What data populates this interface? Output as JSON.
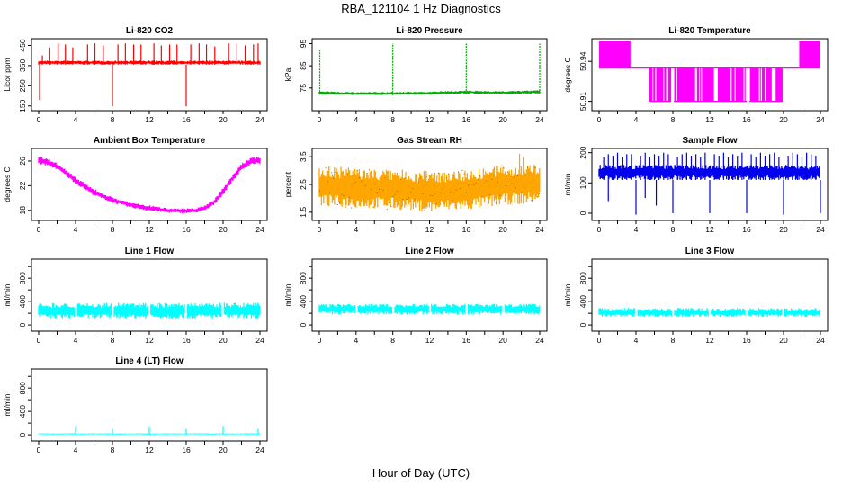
{
  "title": "RBA_121104  1 Hz Diagnostics",
  "xlabel": "Hour of Day (UTC)",
  "chart_data": [
    {
      "type": "line",
      "title": "Li-820 CO2",
      "ylabel": "Licor ppm",
      "color": "#ff0000",
      "xlim": [
        0,
        24
      ],
      "ylim": [
        140,
        470
      ],
      "xticks": [
        "0",
        "4",
        "8",
        "12",
        "16",
        "20",
        "24"
      ],
      "yticks": [
        150,
        250,
        350,
        450
      ],
      "ytick_labels": [
        "150",
        "250",
        "350",
        "450"
      ],
      "series": [
        {
          "kind": "band",
          "x": [
            0,
            24
          ],
          "lo": [
            355,
            355
          ],
          "hi": [
            375,
            375
          ]
        },
        {
          "kind": "spikes",
          "x": [
            0.4,
            1.2,
            2.1,
            2.9,
            3.7,
            5.3,
            6.1,
            7.0,
            8.6,
            9.4,
            10.3,
            11.1,
            12.5,
            13.3,
            14.2,
            15.0,
            16.5,
            17.4,
            18.2,
            19.1,
            20.6,
            21.5,
            22.4,
            23.3,
            23.8
          ],
          "top": [
            400,
            440,
            460,
            455,
            440,
            455,
            460,
            450,
            455,
            460,
            455,
            455,
            460,
            450,
            455,
            455,
            455,
            460,
            455,
            445,
            460,
            460,
            450,
            455,
            460
          ]
        },
        {
          "kind": "spikes",
          "x": [
            0.1,
            8.0,
            16.0
          ],
          "top": [
            180,
            148,
            148
          ]
        }
      ]
    },
    {
      "type": "line",
      "title": "Li-820 Pressure",
      "ylabel": "kPa",
      "color": "#00aa00",
      "xlim": [
        0,
        24
      ],
      "ylim": [
        66,
        96
      ],
      "xticks": [
        "0",
        "4",
        "8",
        "12",
        "16",
        "20",
        "24"
      ],
      "yticks": [
        75,
        85,
        95
      ],
      "ytick_labels": [
        "75",
        "85",
        "95"
      ],
      "series": [
        {
          "kind": "band",
          "x": [
            0,
            4,
            8,
            12,
            16,
            20,
            24
          ],
          "lo": [
            72,
            71.8,
            71.8,
            72,
            72.4,
            72.2,
            72.5
          ],
          "hi": [
            73.5,
            73.2,
            73.2,
            73.4,
            73.8,
            73.6,
            74
          ]
        },
        {
          "kind": "spikes",
          "x": [
            0.05,
            8.0,
            16.0,
            24.0
          ],
          "top": [
            92,
            95,
            95,
            95
          ],
          "dashed": true
        }
      ]
    },
    {
      "type": "line",
      "title": "Li-820 Temperature",
      "ylabel": "degrees C",
      "color": "#ff00ff",
      "xlim": [
        0,
        24
      ],
      "ylim": [
        50.905,
        50.955
      ],
      "xticks": [
        "0",
        "4",
        "8",
        "12",
        "16",
        "20",
        "24"
      ],
      "yticks": [
        50.91,
        50.94
      ],
      "ytick_labels": [
        "50.91",
        "50.94"
      ],
      "series": [
        {
          "kind": "steps",
          "base": 50.935,
          "high": 50.955,
          "low": 50.91,
          "high_ranges": [
            [
              0,
              3.4
            ],
            [
              21.7,
              24
            ]
          ],
          "low_ranges": [
            [
              5.5,
              7.8
            ],
            [
              8.1,
              16.0
            ],
            [
              16.3,
              19.9
            ]
          ]
        }
      ]
    },
    {
      "type": "line",
      "title": "Ambient Box Temperature",
      "ylabel": "degrees C",
      "color": "#ff00ff",
      "xlim": [
        0,
        24
      ],
      "ylim": [
        16.8,
        27.6
      ],
      "xticks": [
        "0",
        "4",
        "8",
        "12",
        "16",
        "20",
        "24"
      ],
      "yticks": [
        18,
        22,
        26
      ],
      "ytick_labels": [
        "18",
        "22",
        "26"
      ],
      "series": [
        {
          "kind": "band",
          "x": [
            0,
            1,
            2,
            3,
            4,
            6,
            8,
            10,
            12,
            14,
            16,
            17,
            18,
            19,
            20,
            21,
            22,
            23,
            24
          ],
          "lo": [
            25.5,
            25.2,
            24.6,
            23.5,
            22.3,
            20.4,
            19.2,
            18.4,
            17.9,
            17.6,
            17.5,
            17.6,
            17.9,
            18.8,
            20.5,
            22.6,
            24.4,
            25.4,
            25.5
          ],
          "hi": [
            26.8,
            26.4,
            25.7,
            24.6,
            23.4,
            21.5,
            20.1,
            19.3,
            18.8,
            18.4,
            18.3,
            18.4,
            18.8,
            19.8,
            21.6,
            23.8,
            25.6,
            26.6,
            26.8
          ]
        }
      ]
    },
    {
      "type": "line",
      "title": "Gas Stream RH",
      "ylabel": "percent",
      "color": "#ffa500",
      "xlim": [
        0,
        24
      ],
      "ylim": [
        1.3,
        3.7
      ],
      "xticks": [
        "0",
        "4",
        "8",
        "12",
        "16",
        "20",
        "24"
      ],
      "yticks": [
        1.5,
        2.5,
        3.5
      ],
      "ytick_labels": [
        "1.5",
        "2.5",
        "3.5"
      ],
      "series": [
        {
          "kind": "band",
          "x": [
            0,
            4,
            8,
            12,
            16,
            20,
            24
          ],
          "lo": [
            1.7,
            1.65,
            1.6,
            1.5,
            1.55,
            1.75,
            1.85
          ],
          "hi": [
            3.2,
            3.1,
            3.05,
            3.0,
            3.05,
            3.2,
            3.25
          ]
        },
        {
          "kind": "spikes",
          "x": [
            21.8,
            22.2
          ],
          "top": [
            3.6,
            3.5
          ]
        }
      ]
    },
    {
      "type": "line",
      "title": "Sample Flow",
      "ylabel": "ml/min",
      "color": "#0000ee",
      "xlim": [
        0,
        24
      ],
      "ylim": [
        -15,
        205
      ],
      "xticks": [
        "0",
        "4",
        "8",
        "12",
        "16",
        "20",
        "24"
      ],
      "yticks": [
        0,
        100,
        200
      ],
      "ytick_labels": [
        "0",
        "100",
        "200"
      ],
      "series": [
        {
          "kind": "band",
          "x": [
            0,
            24
          ],
          "lo": [
            110,
            110
          ],
          "hi": [
            160,
            160
          ]
        },
        {
          "kind": "spikes",
          "x": [
            0.5,
            1.0,
            1.5,
            2.0,
            2.5,
            3.0,
            3.5,
            4.5,
            5.0,
            5.5,
            6.0,
            6.5,
            7.0,
            7.5,
            8.5,
            9.0,
            9.5,
            10.0,
            10.5,
            11.0,
            11.5,
            12.5,
            13.0,
            13.5,
            14.0,
            14.5,
            15.0,
            15.5,
            16.5,
            17.0,
            17.5,
            18.0,
            18.5,
            19.0,
            19.5,
            20.5,
            21.0,
            21.5,
            22.0,
            22.5,
            23.0,
            23.5
          ],
          "top": [
            185,
            195,
            190,
            200,
            185,
            195,
            195,
            190,
            200,
            185,
            195,
            190,
            200,
            195,
            185,
            195,
            200,
            190,
            195,
            185,
            200,
            195,
            190,
            200,
            185,
            195,
            190,
            200,
            195,
            185,
            200,
            190,
            195,
            200,
            185,
            190,
            200,
            195,
            185,
            200,
            195,
            190
          ]
        },
        {
          "kind": "spikes",
          "x": [
            1.0,
            4.0,
            5.0,
            6.2,
            8.0,
            12.0,
            16.0,
            20.0,
            24.0
          ],
          "top": [
            40,
            -5,
            50,
            25,
            0,
            0,
            0,
            -5,
            0
          ]
        }
      ]
    },
    {
      "type": "line",
      "title": "Line 1 Flow",
      "ylabel": "ml/min",
      "color": "#00ffff",
      "xlim": [
        0,
        24
      ],
      "ylim": [
        -60,
        1080
      ],
      "xticks": [
        "0",
        "4",
        "8",
        "12",
        "16",
        "20",
        "24"
      ],
      "yticks": [
        0,
        200,
        400,
        600,
        800,
        1000
      ],
      "ytick_labels": [
        "0",
        "400",
        "800"
      ],
      "series": [
        {
          "kind": "band",
          "x": [
            0,
            24
          ],
          "lo": [
            110,
            110
          ],
          "hi": [
            380,
            380
          ],
          "gaps": [
            4,
            8,
            12,
            16,
            20
          ]
        }
      ]
    },
    {
      "type": "line",
      "title": "Line 2 Flow",
      "ylabel": "ml/min",
      "color": "#00ffff",
      "xlim": [
        0,
        24
      ],
      "ylim": [
        -60,
        1080
      ],
      "xticks": [
        "0",
        "4",
        "8",
        "12",
        "16",
        "20",
        "24"
      ],
      "yticks": [
        0,
        200,
        400,
        600,
        800,
        1000
      ],
      "ytick_labels": [
        "0",
        "400",
        "800"
      ],
      "series": [
        {
          "kind": "band",
          "x": [
            0,
            24
          ],
          "lo": [
            180,
            180
          ],
          "hi": [
            360,
            360
          ],
          "gaps": [
            4,
            8,
            12,
            16,
            20
          ]
        }
      ]
    },
    {
      "type": "line",
      "title": "Line 3 Flow",
      "ylabel": "ml/min",
      "color": "#00ffff",
      "xlim": [
        0,
        24
      ],
      "ylim": [
        -60,
        1080
      ],
      "xticks": [
        "0",
        "4",
        "8",
        "12",
        "16",
        "20",
        "24"
      ],
      "yticks": [
        0,
        200,
        400,
        600,
        800,
        1000
      ],
      "ytick_labels": [
        "0",
        "400",
        "800"
      ],
      "series": [
        {
          "kind": "band",
          "x": [
            0,
            24
          ],
          "lo": [
            140,
            140
          ],
          "hi": [
            290,
            290
          ],
          "gaps": [
            4,
            8,
            12,
            16,
            20
          ]
        }
      ]
    },
    {
      "type": "line",
      "title": "Line 4 (LT) Flow",
      "ylabel": "ml/min",
      "color": "#00ffff",
      "xlim": [
        0,
        24
      ],
      "ylim": [
        -60,
        1080
      ],
      "xticks": [
        "0",
        "4",
        "8",
        "12",
        "16",
        "20",
        "24"
      ],
      "yticks": [
        0,
        200,
        400,
        600,
        800,
        1000
      ],
      "ytick_labels": [
        "0",
        "400",
        "800"
      ],
      "series": [
        {
          "kind": "band",
          "x": [
            0,
            24
          ],
          "lo": [
            5,
            5
          ],
          "hi": [
            25,
            25
          ]
        },
        {
          "kind": "spikes",
          "x": [
            4.0,
            8.0,
            12.0,
            16.0,
            20.0,
            23.8
          ],
          "top": [
            150,
            100,
            140,
            100,
            150,
            100
          ]
        }
      ]
    }
  ]
}
